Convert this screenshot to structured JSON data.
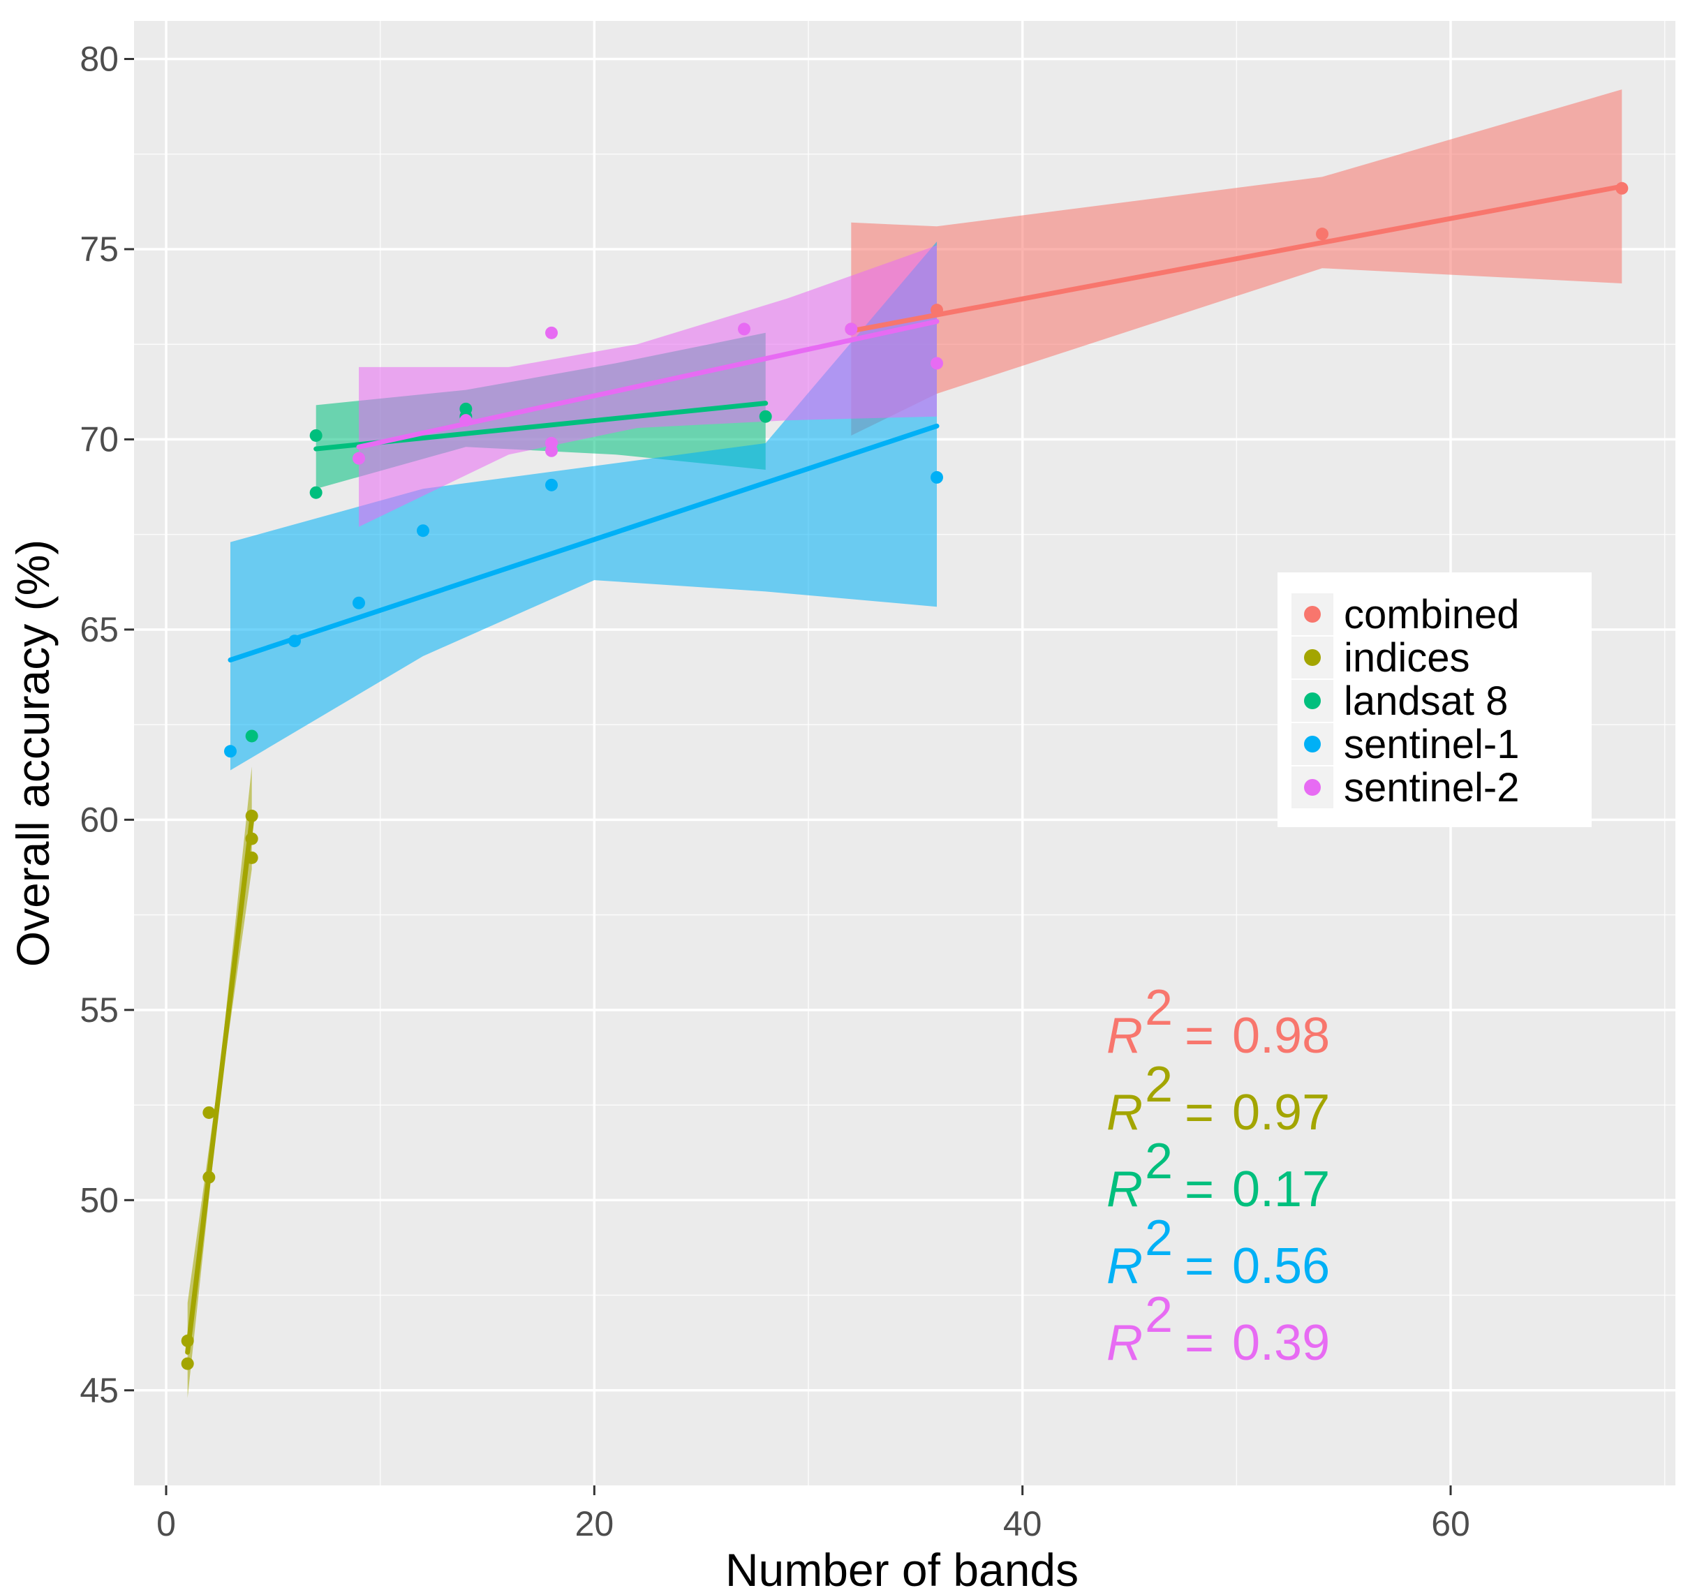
{
  "chart_data": {
    "type": "scatter",
    "title": "",
    "xlabel": "Number of bands",
    "ylabel": "Overall accuracy (%)",
    "xlim": [
      -1.5,
      70.5
    ],
    "ylim": [
      42.5,
      81
    ],
    "x_ticks": [
      0,
      20,
      40,
      60
    ],
    "y_ticks": [
      45,
      50,
      55,
      60,
      65,
      70,
      75,
      80
    ],
    "x_tick_labels": [
      "0",
      "20",
      "40",
      "60"
    ],
    "y_tick_labels": [
      "45",
      "50",
      "55",
      "60",
      "65",
      "70",
      "75",
      "80"
    ],
    "grid": true,
    "legend_position": "right",
    "series": [
      {
        "name": "combined",
        "color": "#F8766D",
        "r2_label": "0.98",
        "points": [
          [
            32,
            72.9
          ],
          [
            36,
            73.4
          ],
          [
            54,
            75.4
          ],
          [
            68,
            76.6
          ]
        ],
        "fit": {
          "x0": 32,
          "y0": 72.85,
          "x1": 68,
          "y1": 76.65
        },
        "band": {
          "x": [
            32,
            36,
            54,
            68
          ],
          "lower": [
            70.1,
            71.2,
            74.5,
            74.1
          ],
          "upper": [
            75.7,
            75.6,
            76.9,
            79.2
          ]
        }
      },
      {
        "name": "indices",
        "color": "#A3A500",
        "r2_label": "0.97",
        "points": [
          [
            1,
            45.7
          ],
          [
            1,
            46.3
          ],
          [
            2,
            50.6
          ],
          [
            2,
            52.3
          ],
          [
            4,
            59.0
          ],
          [
            4,
            59.5
          ],
          [
            4,
            60.1
          ]
        ],
        "fit": {
          "x0": 1,
          "y0": 46.0,
          "x1": 4,
          "y1": 60.0
        },
        "band": {
          "x": [
            1,
            2.5,
            4
          ],
          "lower": [
            44.8,
            52.7,
            58.7
          ],
          "upper": [
            47.3,
            53.4,
            61.4
          ]
        }
      },
      {
        "name": "landsat 8",
        "color": "#00BF7D",
        "r2_label": "0.17",
        "points": [
          [
            4,
            62.2
          ],
          [
            7,
            68.6
          ],
          [
            7,
            70.1
          ],
          [
            14,
            70.6
          ],
          [
            14,
            70.8
          ],
          [
            28,
            70.6
          ]
        ],
        "fit": {
          "x0": 7,
          "y0": 69.75,
          "x1": 28,
          "y1": 70.95
        },
        "band": {
          "x": [
            7,
            14,
            21,
            28
          ],
          "lower": [
            68.7,
            69.8,
            69.6,
            69.2
          ],
          "upper": [
            70.9,
            71.3,
            72.0,
            72.8
          ]
        }
      },
      {
        "name": "sentinel-1",
        "color": "#00B0F6",
        "r2_label": "0.56",
        "points": [
          [
            3,
            61.8
          ],
          [
            6,
            64.7
          ],
          [
            9,
            65.7
          ],
          [
            12,
            67.6
          ],
          [
            18,
            68.8
          ],
          [
            36,
            69.0
          ]
        ],
        "fit": {
          "x0": 3,
          "y0": 64.2,
          "x1": 36,
          "y1": 70.35
        },
        "band": {
          "x": [
            3,
            12,
            20,
            28,
            36
          ],
          "lower": [
            61.3,
            64.3,
            66.3,
            66.0,
            65.6
          ],
          "upper": [
            67.3,
            68.7,
            69.3,
            69.9,
            75.2
          ]
        }
      },
      {
        "name": "sentinel-2",
        "color": "#E76BF3",
        "r2_label": "0.39",
        "points": [
          [
            9,
            69.5
          ],
          [
            14,
            70.5
          ],
          [
            18,
            69.7
          ],
          [
            18,
            69.9
          ],
          [
            18,
            72.8
          ],
          [
            27,
            72.9
          ],
          [
            32,
            72.9
          ],
          [
            36,
            72.0
          ]
        ],
        "fit": {
          "x0": 9,
          "y0": 69.8,
          "x1": 36,
          "y1": 73.1
        },
        "band": {
          "x": [
            9,
            16,
            22,
            29,
            36
          ],
          "lower": [
            67.7,
            69.6,
            70.3,
            70.5,
            70.6
          ],
          "upper": [
            71.9,
            71.9,
            72.5,
            73.7,
            75.1
          ]
        }
      }
    ],
    "legend_entries": [
      "combined",
      "indices",
      "landsat 8",
      "sentinel-1",
      "sentinel-2"
    ]
  },
  "annotations": {
    "r2_symbol": "R",
    "r2_superscript": "2",
    "r2_equals": "=",
    "r2_values": [
      "0.98",
      "0.97",
      "0.17",
      "0.56",
      "0.39"
    ]
  }
}
